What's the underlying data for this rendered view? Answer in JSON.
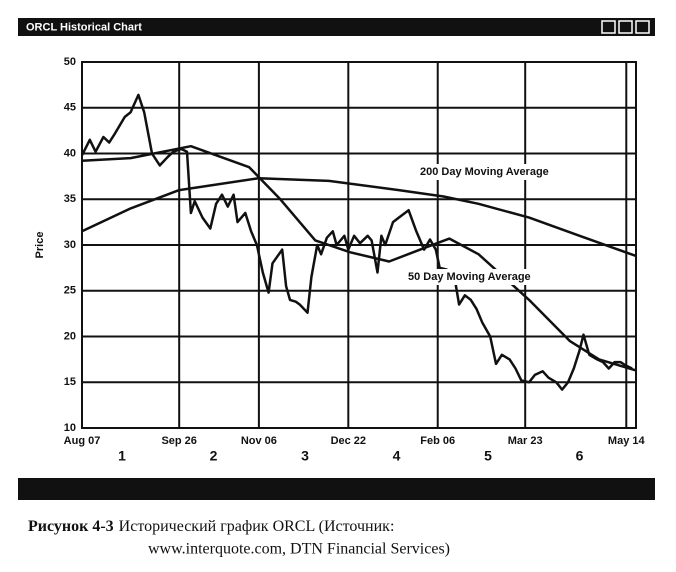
{
  "window_title": "ORCL Historical Chart",
  "caption": {
    "label": "Рисунок 4-3",
    "text": "Исторический график ORCL (Источник:",
    "line2": "www.interquote.com, DTN Financial Services)"
  },
  "chart_data": {
    "type": "line",
    "y_label": "Price",
    "grid": true,
    "ylim": [
      10,
      50
    ],
    "yticks": [
      10,
      15,
      20,
      25,
      30,
      35,
      40,
      45,
      50
    ],
    "xlim": [
      0,
      285
    ],
    "xticks": [
      {
        "value": 0,
        "label": "Aug 07"
      },
      {
        "value": 50,
        "label": "Sep 26"
      },
      {
        "value": 91,
        "label": "Nov 06"
      },
      {
        "value": 137,
        "label": "Dec 22"
      },
      {
        "value": 183,
        "label": "Feb 06"
      },
      {
        "value": 228,
        "label": "Mar 23"
      },
      {
        "value": 280,
        "label": "May 14"
      }
    ],
    "period_labels": [
      "1",
      "2",
      "3",
      "4",
      "5",
      "6"
    ],
    "annotations": [
      "200 Day Moving Average",
      "50 Day Moving Average"
    ],
    "series": [
      {
        "color": "#111111",
        "x": [
          0,
          4,
          7,
          11,
          14,
          17,
          22,
          25,
          29,
          32,
          36,
          40,
          44,
          47,
          51,
          54,
          56,
          58,
          62,
          66,
          69,
          72,
          75,
          78,
          80,
          84,
          87,
          90,
          93,
          96,
          98,
          103,
          105,
          107,
          110,
          112,
          116,
          118,
          121,
          123,
          126,
          129,
          131,
          135,
          137,
          140,
          143,
          147,
          149,
          152,
          154,
          156,
          160,
          163,
          168,
          172,
          176,
          179,
          182,
          184,
          188,
          190,
          192,
          194,
          197,
          200,
          203,
          206,
          210,
          213,
          216,
          220,
          223,
          226,
          230,
          233,
          237,
          240,
          244,
          247,
          250,
          253,
          256,
          258,
          261,
          265,
          268,
          271,
          274,
          277,
          280,
          283
        ],
        "values": [
          39.8,
          41.5,
          40.2,
          41.8,
          41.2,
          42.2,
          44,
          44.5,
          46.4,
          44.5,
          40,
          38.7,
          39.6,
          40.2,
          40.5,
          40.2,
          33.5,
          34.8,
          33,
          31.8,
          34.5,
          35.5,
          34.2,
          35.5,
          32.5,
          33.5,
          31.5,
          30,
          27,
          24.8,
          28,
          29.5,
          25.5,
          24,
          23.8,
          23.5,
          22.6,
          26.5,
          30,
          29,
          30.8,
          31.5,
          30,
          31,
          29.5,
          31,
          30.2,
          31,
          30.5,
          27,
          31,
          30,
          32.5,
          33,
          33.8,
          31.5,
          29.5,
          30.6,
          29.5,
          27.5,
          27.3,
          null,
          26,
          23.5,
          24.5,
          24,
          23,
          21.5,
          20,
          17,
          18,
          17.5,
          16.5,
          15.2,
          15,
          15.8,
          16.2,
          15.5,
          15,
          14.2,
          15,
          16.5,
          18.5,
          20.2,
          18,
          17.5,
          17.2,
          16.5,
          17.2,
          17.2,
          16.8,
          16.5
        ]
      },
      {
        "color": "#111111",
        "x": [
          0,
          25,
          50,
          91,
          127,
          163,
          186,
          204,
          230,
          256,
          285
        ],
        "values": [
          31.5,
          34,
          36,
          37.3,
          37,
          36,
          35.3,
          34.5,
          33,
          31,
          28.8
        ]
      },
      {
        "color": "#111111",
        "x": [
          0,
          25,
          56,
          86,
          102,
          120,
          138,
          158,
          174,
          189,
          204,
          230,
          251,
          266,
          285
        ],
        "values": [
          39.2,
          39.5,
          40.8,
          38.5,
          35,
          30.5,
          29.2,
          28.2,
          29.5,
          30.7,
          29,
          24,
          19.5,
          17.5,
          16.3
        ]
      }
    ]
  }
}
